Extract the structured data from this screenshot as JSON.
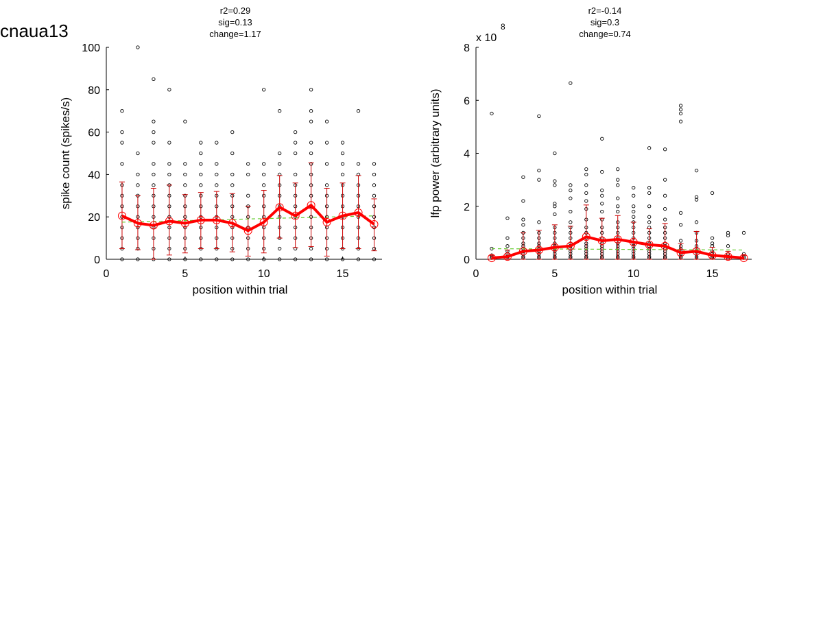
{
  "figure_title": "cnaua13",
  "colors": {
    "mean_line": "#ff0000",
    "errorbar": "#cc0000",
    "fit_line": "#66cc33",
    "points": "#000000"
  },
  "chart_data": [
    {
      "type": "scatter",
      "title_lines": [
        "r2=0.29",
        "sig=0.13",
        "change=1.17"
      ],
      "xlabel": "position within trial",
      "ylabel": "spike count (spikes/s)",
      "xlim": [
        0,
        17.5
      ],
      "ylim": [
        0,
        100
      ],
      "xticks": [
        0,
        5,
        10,
        15
      ],
      "yticks": [
        0,
        20,
        40,
        60,
        80,
        100
      ],
      "exponent_label": "",
      "raw_points": [
        {
          "x": 1,
          "y": [
            0,
            5,
            10,
            15,
            20,
            25,
            30,
            35,
            45,
            55,
            60,
            70
          ]
        },
        {
          "x": 2,
          "y": [
            0,
            5,
            10,
            15,
            20,
            25,
            30,
            35,
            40,
            50,
            100
          ]
        },
        {
          "x": 3,
          "y": [
            0,
            5,
            10,
            15,
            20,
            25,
            30,
            35,
            40,
            45,
            55,
            60,
            65,
            85
          ]
        },
        {
          "x": 4,
          "y": [
            0,
            5,
            10,
            15,
            20,
            25,
            30,
            35,
            40,
            45,
            55,
            80
          ]
        },
        {
          "x": 5,
          "y": [
            0,
            5,
            10,
            15,
            20,
            25,
            30,
            35,
            40,
            45,
            65
          ]
        },
        {
          "x": 6,
          "y": [
            0,
            5,
            10,
            15,
            20,
            25,
            30,
            35,
            40,
            45,
            50,
            55
          ]
        },
        {
          "x": 7,
          "y": [
            0,
            5,
            10,
            15,
            20,
            25,
            30,
            35,
            40,
            45,
            55
          ]
        },
        {
          "x": 8,
          "y": [
            0,
            5,
            10,
            15,
            20,
            25,
            30,
            35,
            40,
            50,
            60
          ]
        },
        {
          "x": 9,
          "y": [
            0,
            5,
            10,
            15,
            20,
            25,
            30,
            40,
            45
          ]
        },
        {
          "x": 10,
          "y": [
            0,
            5,
            10,
            15,
            20,
            25,
            30,
            35,
            40,
            45,
            80
          ]
        },
        {
          "x": 11,
          "y": [
            0,
            5,
            10,
            15,
            20,
            25,
            30,
            35,
            40,
            45,
            50,
            70
          ]
        },
        {
          "x": 12,
          "y": [
            0,
            5,
            10,
            15,
            20,
            25,
            30,
            35,
            40,
            50,
            55,
            60
          ]
        },
        {
          "x": 13,
          "y": [
            0,
            5,
            10,
            15,
            20,
            25,
            30,
            35,
            40,
            45,
            50,
            55,
            65,
            70,
            80
          ]
        },
        {
          "x": 14,
          "y": [
            0,
            5,
            10,
            15,
            20,
            25,
            30,
            35,
            45,
            55,
            65
          ]
        },
        {
          "x": 15,
          "y": [
            0,
            5,
            10,
            15,
            20,
            25,
            30,
            35,
            40,
            45,
            50,
            55
          ]
        },
        {
          "x": 16,
          "y": [
            0,
            5,
            10,
            15,
            20,
            25,
            30,
            35,
            40,
            45,
            70
          ]
        },
        {
          "x": 17,
          "y": [
            0,
            5,
            10,
            15,
            20,
            25,
            30,
            35,
            40,
            45
          ]
        }
      ],
      "mean": {
        "x": [
          1,
          2,
          3,
          4,
          5,
          6,
          7,
          8,
          9,
          10,
          11,
          12,
          13,
          14,
          15,
          16,
          17
        ],
        "y": [
          20.5,
          17,
          16,
          18,
          17,
          18.5,
          18.5,
          17,
          13.5,
          17.5,
          24.5,
          20.5,
          25.5,
          17.5,
          20.5,
          22,
          16.5
        ],
        "err_low": [
          5,
          4.5,
          0,
          2,
          3,
          5,
          5,
          3.5,
          1.5,
          3,
          10,
          5.5,
          6,
          1.5,
          5,
          5,
          4
        ],
        "err_high": [
          36.5,
          30,
          33.5,
          35,
          30.5,
          31.5,
          32,
          31,
          25,
          32.5,
          39.5,
          36,
          45.5,
          33.5,
          36,
          39.5,
          28.5
        ]
      },
      "fit": {
        "x": [
          1,
          17
        ],
        "y": [
          17.5,
          20.5
        ]
      }
    },
    {
      "type": "scatter",
      "title_lines": [
        "r2=-0.14",
        "sig=0.3",
        "change=0.74"
      ],
      "xlabel": "position within trial",
      "ylabel": "lfp power (arbitrary units)",
      "xlim": [
        0,
        17.5
      ],
      "ylim": [
        0,
        8
      ],
      "xticks": [
        0,
        5,
        10,
        15
      ],
      "yticks": [
        0,
        2,
        4,
        6,
        8
      ],
      "exponent_label": "x 10",
      "exponent_value": "8",
      "raw_points": [
        {
          "x": 1,
          "y": [
            0.05,
            0.1,
            0.15,
            0.4,
            5.5
          ]
        },
        {
          "x": 2,
          "y": [
            0.05,
            0.1,
            0.2,
            0.3,
            0.5,
            0.8,
            1.55
          ]
        },
        {
          "x": 3,
          "y": [
            0.05,
            0.1,
            0.2,
            0.3,
            0.4,
            0.5,
            0.6,
            0.8,
            1.0,
            1.3,
            1.5,
            2.2,
            3.1
          ]
        },
        {
          "x": 4,
          "y": [
            0.05,
            0.1,
            0.2,
            0.3,
            0.4,
            0.5,
            0.6,
            0.8,
            1.0,
            1.4,
            3.0,
            3.35,
            5.4
          ]
        },
        {
          "x": 5,
          "y": [
            0.05,
            0.1,
            0.2,
            0.3,
            0.4,
            0.5,
            0.6,
            0.8,
            1.0,
            1.2,
            1.7,
            2.0,
            2.1,
            2.8,
            2.95,
            4.0
          ]
        },
        {
          "x": 6,
          "y": [
            0.05,
            0.1,
            0.2,
            0.3,
            0.4,
            0.5,
            0.6,
            0.8,
            1.0,
            1.2,
            1.4,
            1.8,
            2.3,
            2.6,
            2.8,
            6.65
          ]
        },
        {
          "x": 7,
          "y": [
            0.05,
            0.1,
            0.2,
            0.3,
            0.4,
            0.5,
            0.6,
            0.8,
            1.0,
            1.2,
            1.5,
            1.9,
            2.2,
            2.5,
            2.8,
            3.2,
            3.4
          ]
        },
        {
          "x": 8,
          "y": [
            0.05,
            0.1,
            0.2,
            0.3,
            0.4,
            0.5,
            0.6,
            0.8,
            1.0,
            1.2,
            1.5,
            1.8,
            2.1,
            2.4,
            2.6,
            3.3,
            4.55
          ]
        },
        {
          "x": 9,
          "y": [
            0.05,
            0.1,
            0.2,
            0.3,
            0.4,
            0.5,
            0.6,
            0.8,
            1.0,
            1.2,
            1.4,
            1.8,
            2.0,
            2.3,
            2.8,
            3.0,
            3.4
          ]
        },
        {
          "x": 10,
          "y": [
            0.05,
            0.1,
            0.2,
            0.3,
            0.4,
            0.5,
            0.6,
            0.8,
            1.0,
            1.2,
            1.4,
            1.6,
            1.8,
            2.0,
            2.4,
            2.7
          ]
        },
        {
          "x": 11,
          "y": [
            0.05,
            0.1,
            0.2,
            0.3,
            0.4,
            0.5,
            0.6,
            0.8,
            1.0,
            1.2,
            1.4,
            1.6,
            2.0,
            2.5,
            2.7,
            4.2
          ]
        },
        {
          "x": 12,
          "y": [
            0.05,
            0.1,
            0.2,
            0.3,
            0.4,
            0.5,
            0.6,
            0.8,
            1.0,
            1.2,
            1.5,
            1.9,
            2.4,
            3.0,
            4.15
          ]
        },
        {
          "x": 13,
          "y": [
            0.05,
            0.1,
            0.2,
            0.3,
            0.4,
            0.5,
            0.7,
            1.3,
            1.75,
            5.2,
            5.5,
            5.65,
            5.8
          ]
        },
        {
          "x": 14,
          "y": [
            0.05,
            0.1,
            0.2,
            0.3,
            0.4,
            0.5,
            0.7,
            1.0,
            1.4,
            2.25,
            2.35,
            3.35
          ]
        },
        {
          "x": 15,
          "y": [
            0.05,
            0.1,
            0.2,
            0.3,
            0.5,
            0.6,
            0.8,
            2.5
          ]
        },
        {
          "x": 16,
          "y": [
            0.05,
            0.1,
            0.2,
            0.5,
            0.9,
            1.0
          ]
        },
        {
          "x": 17,
          "y": [
            0.05,
            0.1,
            0.2,
            1.0
          ]
        }
      ],
      "mean": {
        "x": [
          1,
          2,
          3,
          4,
          5,
          6,
          7,
          8,
          9,
          10,
          11,
          12,
          13,
          14,
          15,
          16,
          17
        ],
        "y": [
          0.05,
          0.1,
          0.3,
          0.35,
          0.45,
          0.5,
          0.85,
          0.7,
          0.75,
          0.65,
          0.55,
          0.5,
          0.25,
          0.3,
          0.15,
          0.1,
          0.05
        ],
        "err_low": [
          0,
          0,
          0,
          0,
          0,
          0,
          0,
          0,
          0,
          0,
          0,
          0,
          0,
          0,
          0,
          0,
          0
        ],
        "err_high": [
          0.15,
          0.35,
          1.0,
          1.1,
          1.3,
          1.25,
          2.05,
          1.55,
          1.65,
          1.4,
          1.15,
          1.35,
          0.6,
          1.05,
          0.45,
          0.3,
          0.15
        ]
      },
      "fit": {
        "x": [
          1,
          17
        ],
        "y": [
          0.4,
          0.35
        ]
      }
    }
  ]
}
